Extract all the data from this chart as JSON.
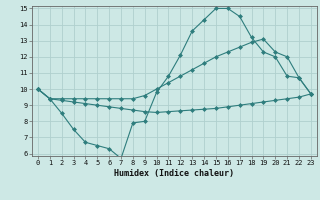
{
  "xlabel": "Humidex (Indice chaleur)",
  "bg_color": "#cde8e5",
  "line_color": "#2e7d7d",
  "grid_color": "#b0d0ce",
  "ylim": [
    6,
    15
  ],
  "xlim": [
    -0.5,
    23.5
  ],
  "yticks": [
    6,
    7,
    8,
    9,
    10,
    11,
    12,
    13,
    14,
    15
  ],
  "xticks": [
    0,
    1,
    2,
    3,
    4,
    5,
    6,
    7,
    8,
    9,
    10,
    11,
    12,
    13,
    14,
    15,
    16,
    17,
    18,
    19,
    20,
    21,
    22,
    23
  ],
  "line1_x": [
    0,
    1,
    2,
    3,
    4,
    5,
    6,
    7,
    8,
    9,
    10,
    11,
    12,
    13,
    14,
    15,
    16,
    17,
    18,
    19,
    20,
    21,
    22,
    23
  ],
  "line1_y": [
    10.0,
    9.4,
    8.5,
    7.5,
    6.7,
    6.5,
    6.3,
    5.7,
    7.9,
    8.0,
    9.8,
    10.8,
    12.1,
    13.6,
    14.3,
    15.0,
    15.0,
    14.5,
    13.2,
    12.3,
    12.0,
    10.8,
    10.7,
    9.7
  ],
  "line2_x": [
    0,
    1,
    2,
    3,
    4,
    5,
    6,
    7,
    8,
    9,
    10,
    11,
    12,
    13,
    14,
    15,
    16,
    17,
    18,
    19,
    20,
    21,
    22,
    23
  ],
  "line2_y": [
    10.0,
    9.4,
    9.4,
    9.4,
    9.4,
    9.4,
    9.4,
    9.4,
    9.4,
    9.6,
    10.0,
    10.4,
    10.8,
    11.2,
    11.6,
    12.0,
    12.3,
    12.6,
    12.9,
    13.1,
    12.3,
    12.0,
    10.7,
    9.7
  ],
  "line3_x": [
    0,
    1,
    2,
    3,
    4,
    5,
    6,
    7,
    8,
    9,
    10,
    11,
    12,
    13,
    14,
    15,
    16,
    17,
    18,
    19,
    20,
    21,
    22,
    23
  ],
  "line3_y": [
    10.0,
    9.4,
    9.3,
    9.2,
    9.1,
    9.0,
    8.9,
    8.8,
    8.7,
    8.6,
    8.55,
    8.6,
    8.65,
    8.7,
    8.75,
    8.8,
    8.9,
    9.0,
    9.1,
    9.2,
    9.3,
    9.4,
    9.5,
    9.7
  ]
}
